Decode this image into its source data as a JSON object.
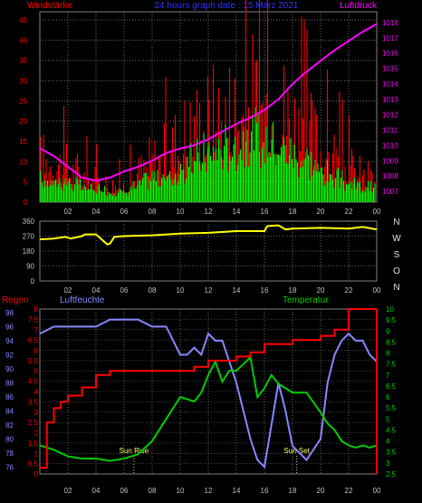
{
  "colors": {
    "wind_avg": "#00ff00",
    "wind_gust": "#ff0000",
    "pressure": "#ff00ff",
    "direction": "#ffff00",
    "humidity": "#8888ff",
    "temperature": "#00cc00",
    "rain": "#ff0000",
    "grid": "#808080",
    "title": "#3333ff",
    "axis_text": "#c0c0c0"
  },
  "header": {
    "title": "24 hours graph date : 15 März 2021",
    "left_label": "Windstärke",
    "right_label": "Luftdruck"
  },
  "chart_data": [
    {
      "type": "bar",
      "name": "wind-pressure",
      "x_ticks": [
        "02",
        "04",
        "06",
        "08",
        "10",
        "12",
        "14",
        "16",
        "18",
        "20",
        "22",
        "00"
      ],
      "y_left_ticks": [
        "0",
        "5",
        "10",
        "15",
        "20",
        "25",
        "30",
        "35",
        "40",
        "45"
      ],
      "y_left_range": [
        0,
        47
      ],
      "y_right_ticks": [
        "1007",
        "1008",
        "1009",
        "1010",
        "1011",
        "1012",
        "1013",
        "1014",
        "1015",
        "1016",
        "1017",
        "1018"
      ],
      "y_right_range": [
        1006.3,
        1018.7
      ],
      "series": [
        {
          "name": "Windstärke",
          "hours": [
            0,
            1,
            2,
            3,
            4,
            5,
            6,
            7,
            8,
            9,
            10,
            11,
            12,
            13,
            14,
            15,
            16,
            17,
            18,
            19,
            20,
            21,
            22,
            23,
            24
          ],
          "avg": [
            6,
            6,
            6,
            4,
            4,
            3,
            3,
            5,
            7,
            7,
            8,
            12,
            14,
            15,
            17,
            18,
            18,
            17,
            14,
            12,
            9,
            7,
            5,
            4,
            4
          ],
          "gust": [
            14,
            15,
            12,
            10,
            8,
            6,
            6,
            10,
            14,
            17,
            22,
            26,
            28,
            30,
            33,
            35,
            36,
            33,
            30,
            24,
            20,
            17,
            12,
            9,
            8
          ]
        },
        {
          "name": "Luftdruck",
          "hours": [
            0,
            1,
            2,
            3,
            4,
            5,
            6,
            7,
            8,
            9,
            10,
            11,
            12,
            13,
            14,
            15,
            16,
            17,
            18,
            19,
            20,
            21,
            22,
            23,
            24
          ],
          "values": [
            1009.8,
            1009.3,
            1008.6,
            1007.9,
            1007.7,
            1007.9,
            1008.3,
            1008.6,
            1009.0,
            1009.5,
            1009.8,
            1010.0,
            1010.4,
            1010.9,
            1011.4,
            1011.8,
            1012.3,
            1013.0,
            1014.0,
            1014.8,
            1015.5,
            1016.2,
            1016.8,
            1017.4,
            1017.9
          ]
        }
      ]
    },
    {
      "type": "line",
      "name": "wind-direction",
      "y_ticks": [
        "0",
        "90",
        "180",
        "270",
        "360"
      ],
      "y_range": [
        0,
        360
      ],
      "compass": [
        "N",
        "W",
        "S",
        "O",
        "N"
      ],
      "series": [
        {
          "name": "",
          "hours": [
            0,
            1,
            1.8,
            2.2,
            3,
            3.2,
            4,
            4.8,
            5,
            5.3,
            6,
            8,
            10,
            12,
            14,
            16,
            16.2,
            17,
            17.5,
            18,
            20,
            22,
            23,
            24
          ],
          "values": [
            250,
            255,
            265,
            255,
            270,
            280,
            280,
            220,
            225,
            265,
            270,
            275,
            285,
            290,
            300,
            300,
            330,
            335,
            310,
            315,
            320,
            315,
            325,
            310
          ]
        }
      ]
    },
    {
      "type": "line",
      "name": "rain-humidity-temperature",
      "labels": {
        "rain": "Regen",
        "humidity": "Luftfeuchte",
        "temperature": "Temperatur"
      },
      "y_rain_ticks": [
        "0",
        "0.5",
        "1",
        "1.5",
        "2",
        "2.5",
        "3",
        "3.5",
        "4",
        "4.5",
        "5",
        "5.5",
        "6",
        "6.5",
        "7",
        "7.5",
        "8"
      ],
      "y_rain_range": [
        0,
        8
      ],
      "y_humidity_ticks": [
        "76",
        "78",
        "80",
        "82",
        "84",
        "86",
        "88",
        "90",
        "92",
        "94",
        "96",
        "98"
      ],
      "y_humidity_range": [
        75,
        98.5
      ],
      "y_temp_ticks": [
        "2.5",
        "3",
        "3.5",
        "4",
        "4.5",
        "5",
        "5.5",
        "6",
        "6.5",
        "7",
        "7.5",
        "8",
        "8.5",
        "9",
        "9.5",
        "10"
      ],
      "y_temp_range": [
        2.5,
        10
      ],
      "annotations": [
        {
          "label": "Sun Rise",
          "hour": 6.7
        },
        {
          "label": "Sun Set",
          "hour": 18.3
        }
      ],
      "series": [
        {
          "name": "Regen",
          "hours": [
            0,
            0.5,
            1,
            1.5,
            2,
            3,
            4,
            5,
            6,
            8,
            10,
            11,
            12,
            14,
            15,
            16,
            18,
            20,
            21,
            22,
            23,
            24
          ],
          "values": [
            0.3,
            2.5,
            3.2,
            3.5,
            3.8,
            4.2,
            4.8,
            5,
            5,
            5,
            5,
            5.2,
            5.5,
            5.7,
            5.9,
            6.3,
            6.5,
            6.7,
            7,
            8,
            8,
            8
          ]
        },
        {
          "name": "Luftfeuchte",
          "hours": [
            0,
            1,
            2,
            3,
            4,
            5,
            6,
            7,
            8,
            9,
            9.5,
            10,
            10.5,
            11,
            11.5,
            12,
            12.5,
            13,
            13.5,
            14,
            14.5,
            15,
            15.5,
            16,
            16.5,
            17,
            17.5,
            18,
            19,
            20,
            20.5,
            21,
            21.5,
            22,
            22.5,
            23,
            23.5,
            24
          ],
          "values": [
            95,
            96,
            96,
            96,
            96,
            97,
            97,
            97,
            96,
            96,
            94,
            92,
            92,
            93,
            92,
            95,
            94,
            94,
            91,
            88,
            84,
            80,
            77,
            76,
            82,
            88,
            84,
            79,
            77,
            80,
            88,
            92,
            94,
            95,
            94,
            94,
            92,
            91
          ]
        },
        {
          "name": "Temperatur",
          "hours": [
            0,
            1,
            2,
            3,
            4,
            5,
            6,
            7,
            8,
            9,
            10,
            10.5,
            11,
            11.5,
            12,
            12.5,
            13,
            13.5,
            14,
            14.5,
            15,
            15.5,
            16,
            16.5,
            17,
            17.5,
            18,
            19,
            20,
            20.5,
            21,
            21.5,
            22,
            22.5,
            23,
            23.5,
            24
          ],
          "values": [
            3.8,
            3.6,
            3.3,
            3.2,
            3.2,
            3.1,
            3.2,
            3.4,
            4,
            5,
            6,
            5.9,
            5.8,
            6.2,
            7,
            7.6,
            6.7,
            7.2,
            7.2,
            7.5,
            7.8,
            6,
            6.4,
            7,
            6.6,
            6.4,
            6.2,
            6.2,
            5.3,
            4.8,
            4.5,
            4,
            3.8,
            3.7,
            3.8,
            3.7,
            3.8
          ]
        }
      ]
    }
  ]
}
